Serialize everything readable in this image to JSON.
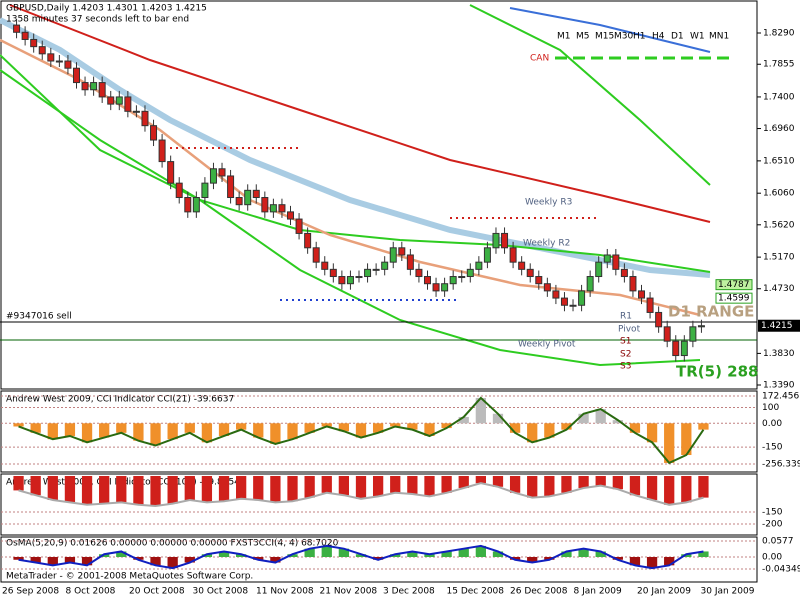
{
  "header": {
    "symbol_line": "GBPUSD,Daily  1.4203 1.4301 1.4203 1.4215",
    "timer": "1358 minutes 37 seconds left to bar end"
  },
  "timeframes": [
    "M1",
    "M5",
    "M15",
    "M30",
    "H1",
    "H4",
    "D1",
    "W1",
    "MN1"
  ],
  "can_label": "CAN",
  "price_axis": {
    "ticks": [
      {
        "value": 1.829,
        "label": "1.8290"
      },
      1.7855,
      {
        "value": 1.74,
        "label": "1.7400"
      },
      {
        "value": 1.696,
        "label": "1.6960"
      },
      {
        "value": 1.651,
        "label": "1.6510"
      },
      {
        "value": 1.606,
        "label": "1.6060"
      },
      {
        "value": 1.562,
        "label": "1.5620"
      },
      {
        "value": 1.517,
        "label": "1.5170"
      },
      {
        "value": 1.473,
        "label": "1.4730"
      },
      {
        "value": 1.383,
        "label": "1.3830"
      },
      {
        "value": 1.339,
        "label": "1.3390"
      }
    ],
    "current": 1.4215,
    "levels": [
      1.4787,
      1.4599
    ]
  },
  "order_label": "#9347016 sell",
  "annotations": {
    "weekly_r3": "Weekly R3",
    "weekly_r2": "Weekly R2",
    "weekly_pivot": "Weekly Pivot",
    "pivot": "Pivot",
    "r1": "R1",
    "s1": "S1",
    "s2": "S2",
    "s3": "S3",
    "range": "D1 RANGE",
    "tr": "TR(5) 288"
  },
  "candles": {
    "close": [
      1.84,
      1.83,
      1.82,
      1.81,
      1.8,
      1.79,
      1.79,
      1.78,
      1.76,
      1.75,
      1.76,
      1.74,
      1.73,
      1.74,
      1.72,
      1.72,
      1.7,
      1.68,
      1.65,
      1.62,
      1.6,
      1.58,
      1.6,
      1.62,
      1.64,
      1.63,
      1.6,
      1.59,
      1.61,
      1.6,
      1.58,
      1.59,
      1.58,
      1.57,
      1.55,
      1.53,
      1.51,
      1.5,
      1.49,
      1.48,
      1.49,
      1.49,
      1.5,
      1.5,
      1.51,
      1.53,
      1.52,
      1.5,
      1.49,
      1.48,
      1.47,
      1.48,
      1.49,
      1.49,
      1.5,
      1.51,
      1.53,
      1.55,
      1.53,
      1.51,
      1.5,
      1.49,
      1.48,
      1.47,
      1.46,
      1.45,
      1.45,
      1.47,
      1.49,
      1.51,
      1.52,
      1.5,
      1.49,
      1.47,
      1.46,
      1.44,
      1.42,
      1.4,
      1.38,
      1.4,
      1.42,
      1.4215
    ]
  },
  "cci21": {
    "label": "Andrew West 2009, CCI Indicator  CCI(21) -39.6637",
    "ticks": [
      172.456,
      100,
      {
        "value": 0,
        "label": "0.00"
      },
      -150,
      -256.339
    ],
    "values": [
      -20,
      -60,
      -100,
      -80,
      -120,
      -90,
      -60,
      -110,
      -140,
      -100,
      -60,
      -120,
      -80,
      -40,
      -90,
      -130,
      -100,
      -60,
      -20,
      -50,
      -90,
      -60,
      -20,
      -40,
      -80,
      -30,
      40,
      160,
      60,
      -60,
      -120,
      -90,
      -40,
      60,
      90,
      20,
      -60,
      -120,
      -250,
      -200,
      -40
    ]
  },
  "cci100": {
    "label": "Andrew West 2009, CCI Indicator  CCI(100) -89.8054",
    "ticks": [
      -150,
      -200
    ],
    "values": [
      -60,
      -80,
      -100,
      -110,
      -120,
      -115,
      -110,
      -120,
      -125,
      -115,
      -100,
      -110,
      -105,
      -95,
      -100,
      -110,
      -105,
      -90,
      -70,
      -80,
      -95,
      -85,
      -70,
      -75,
      -85,
      -70,
      -50,
      -30,
      -45,
      -70,
      -90,
      -85,
      -70,
      -50,
      -40,
      -55,
      -80,
      -100,
      -120,
      -110,
      -90
    ]
  },
  "osma": {
    "label": "OsMA(5,20,9) 0.01626 0.00000 0.00000 0.00000  FXST3CCI(4, 4) 68.7020",
    "ticks": [
      0.0577,
      {
        "value": 0,
        "label": "0.00"
      },
      -0.04349
    ],
    "values": [
      -0.01,
      -0.02,
      -0.03,
      -0.02,
      -0.03,
      0.01,
      0.02,
      -0.01,
      -0.03,
      -0.04,
      -0.02,
      0.01,
      0.02,
      0.01,
      -0.01,
      -0.02,
      0.01,
      0.03,
      0.04,
      0.03,
      0.01,
      -0.01,
      0.01,
      0.02,
      0.01,
      0.02,
      0.03,
      0.04,
      0.02,
      -0.01,
      -0.02,
      -0.01,
      0.02,
      0.03,
      0.02,
      -0.01,
      -0.03,
      -0.04,
      -0.03,
      0.01,
      0.02
    ]
  },
  "copyright": "MetaTrader - © 2001-2008 MetaQuotes Software Corp.",
  "dates": [
    "26 Sep 2008",
    "8 Oct 2008",
    "20 Oct 2008",
    "30 Oct 2008",
    "11 Nov 2008",
    "21 Nov 2008",
    "3 Dec 2008",
    "15 Dec 2008",
    "26 Dec 2008",
    "8 Jan 2009",
    "20 Jan 2009",
    "30 Jan 2009"
  ]
}
